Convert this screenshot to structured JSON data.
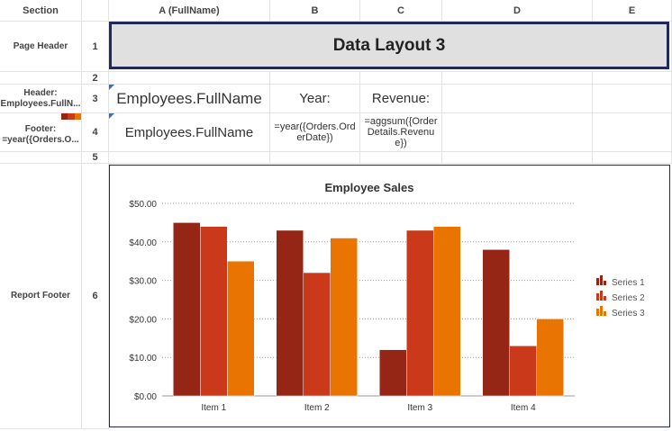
{
  "columns": {
    "section": "Section",
    "a": "A (FullName)",
    "b": "B",
    "c": "C",
    "d": "D",
    "e": "E"
  },
  "rows": {
    "r1": {
      "number": "1",
      "section": "Page Header"
    },
    "r2": {
      "number": "2"
    },
    "r3": {
      "number": "3",
      "section_line1": "Header:",
      "section_line2": "Employees.FullN..."
    },
    "r4": {
      "number": "4",
      "section_line1": "Footer:",
      "section_line2": "=year({Orders.O..."
    },
    "r5": {
      "number": "5"
    },
    "r6": {
      "number": "6",
      "section": "Report Footer"
    }
  },
  "cells": {
    "title": "Data Layout 3",
    "r3_a": "Employees.FullName",
    "r3_b": "Year:",
    "r3_c": "Revenue:",
    "r4_a": "Employees.FullName",
    "r4_b": "=year({Orders.OrderDate})",
    "r4_c": "=aggsum({OrderDetails.Revenue})"
  },
  "colors": {
    "series1": "#952514",
    "series2": "#c9391a",
    "series3": "#e97402",
    "border_dark": "#23285a",
    "title_bg": "#e0e0e0"
  },
  "chart_data": {
    "type": "bar",
    "title": "Employee Sales",
    "categories": [
      "Item 1",
      "Item 2",
      "Item 3",
      "Item 4"
    ],
    "series": [
      {
        "name": "Series 1",
        "values": [
          45,
          43,
          12,
          38
        ]
      },
      {
        "name": "Series 2",
        "values": [
          44,
          32,
          43,
          13
        ]
      },
      {
        "name": "Series 3",
        "values": [
          35,
          41,
          44,
          20
        ]
      }
    ],
    "ylim": [
      0,
      50
    ],
    "yticks": [
      "$0.00",
      "$10.00",
      "$20.00",
      "$30.00",
      "$40.00",
      "$50.00"
    ],
    "grid": true,
    "legend": "right"
  }
}
